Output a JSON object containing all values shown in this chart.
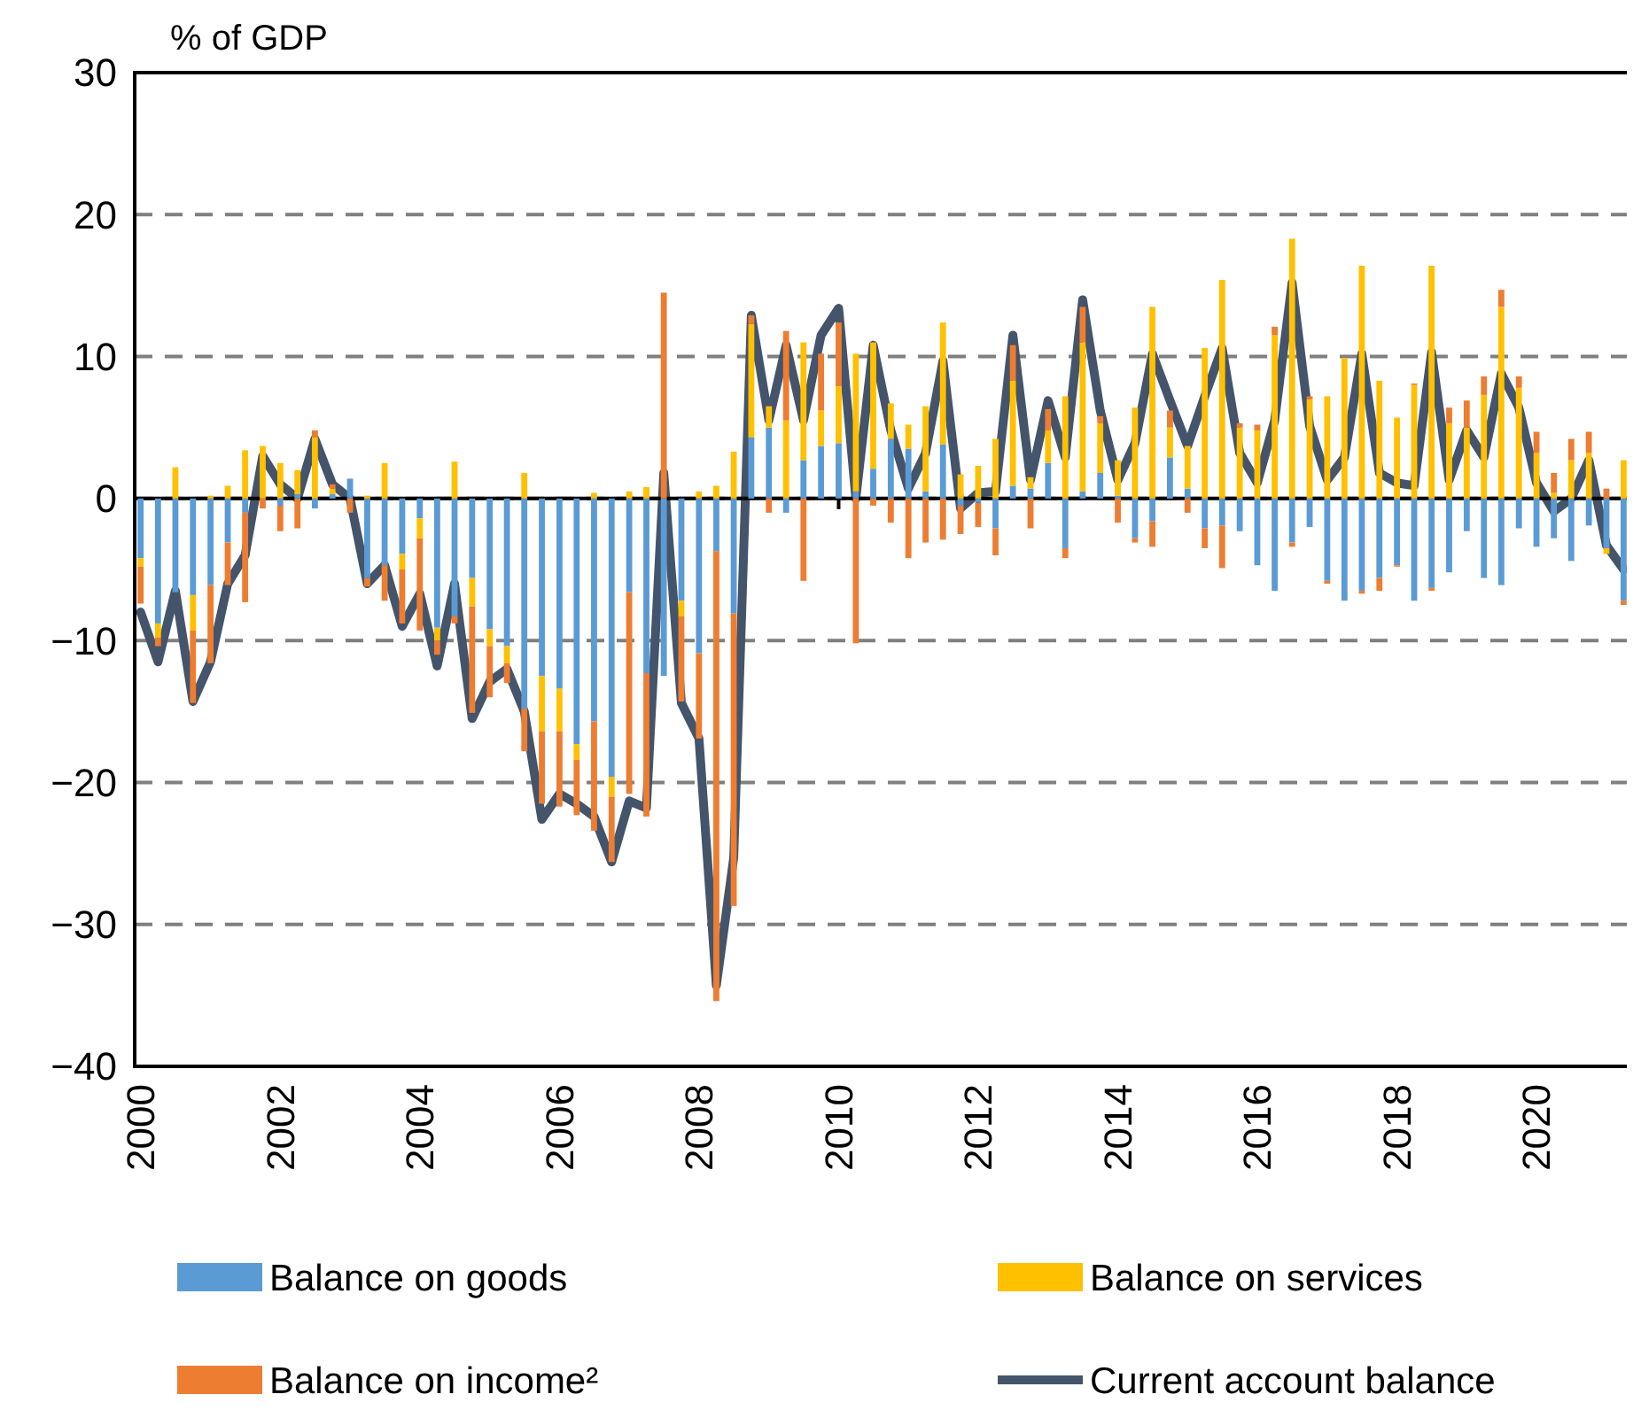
{
  "chart_data": {
    "type": "bar",
    "stacked": true,
    "ylabel": "% of GDP",
    "ylim": [
      -40,
      30
    ],
    "yticks": [
      -40,
      -30,
      -20,
      -10,
      0,
      10,
      20,
      30
    ],
    "grid": "y",
    "legend": "bottom",
    "xlim": [
      "1999-12",
      "2021-07"
    ],
    "xticks": [
      "2000",
      "2002",
      "2004",
      "2006",
      "2008",
      "2010",
      "2012",
      "2014",
      "2016",
      "2018",
      "2020"
    ],
    "x": [
      "2000-01",
      "2000-04",
      "2000-07",
      "2000-10",
      "2001-01",
      "2001-04",
      "2001-07",
      "2001-10",
      "2002-01",
      "2002-04",
      "2002-07",
      "2002-10",
      "2003-01",
      "2003-04",
      "2003-07",
      "2003-10",
      "2004-01",
      "2004-04",
      "2004-07",
      "2004-10",
      "2005-01",
      "2005-04",
      "2005-07",
      "2005-10",
      "2006-01",
      "2006-04",
      "2006-07",
      "2006-10",
      "2007-01",
      "2007-04",
      "2007-07",
      "2007-10",
      "2008-01",
      "2008-04",
      "2008-07",
      "2008-10",
      "2009-01",
      "2009-04",
      "2009-07",
      "2009-10",
      "2010-01",
      "2010-04",
      "2010-07",
      "2010-10",
      "2011-01",
      "2011-04",
      "2011-07",
      "2011-10",
      "2012-01",
      "2012-04",
      "2012-07",
      "2012-10",
      "2013-01",
      "2013-04",
      "2013-07",
      "2013-10",
      "2014-01",
      "2014-04",
      "2014-07",
      "2014-10",
      "2015-01",
      "2015-04",
      "2015-07",
      "2015-10",
      "2016-01",
      "2016-04",
      "2016-07",
      "2016-10",
      "2017-01",
      "2017-04",
      "2017-07",
      "2017-10",
      "2018-01",
      "2018-04",
      "2018-07",
      "2018-10",
      "2019-01",
      "2019-04",
      "2019-07",
      "2019-10",
      "2020-01",
      "2020-04",
      "2020-07",
      "2020-10",
      "2021-01",
      "2021-04"
    ],
    "series": [
      {
        "name": "Balance on goods",
        "color": "#5b9bd5",
        "values": [
          -4.2,
          -8.8,
          -6.6,
          -6.8,
          -6.1,
          -3.1,
          -1,
          0,
          -0.5,
          0.3,
          -0.7,
          0.3,
          1.4,
          -5.6,
          -4.7,
          -3.9,
          -1.4,
          -9.1,
          -8.3,
          -5.6,
          -9.2,
          -10.4,
          -14.8,
          -12.5,
          -13.4,
          -17.3,
          -15.7,
          -19.6,
          -6.6,
          -12.3,
          -12.5,
          -7.2,
          -10.9,
          -3.7,
          -8.1,
          4.3,
          5,
          -1,
          2.7,
          3.7,
          3.9,
          0.5,
          2.1,
          4.2,
          3.5,
          0.5,
          3.8,
          -0.5,
          -0.3,
          -2.1,
          0.9,
          0.7,
          2.5,
          -3.5,
          0.5,
          1.8,
          0.2,
          -2.8,
          -1.6,
          2.9,
          0.7,
          -2.1,
          -1.9,
          -2.3,
          -4.7,
          -6.5,
          -3.1,
          -2,
          -5.8,
          -7.2,
          -6.5,
          -5.6,
          -4.7,
          -7.2,
          -6.3,
          -5.2,
          -2.3,
          -5.6,
          -6.1,
          -2.1,
          -3.4,
          -2.8,
          -4.4,
          -1.9,
          -3.5,
          -7.2
        ]
      },
      {
        "name": "Balance on services",
        "color": "#ffc000",
        "values": [
          -0.6,
          -1,
          2.2,
          -2.5,
          0.2,
          0.9,
          3.4,
          3.7,
          2.5,
          1.7,
          4.3,
          0.4,
          0,
          0.2,
          2.5,
          -1.1,
          -1.4,
          -0.9,
          2.6,
          -2,
          -1.2,
          -1.2,
          1.8,
          -3.9,
          -3,
          -1.1,
          0.4,
          -1.4,
          0.5,
          0.8,
          0,
          -1.1,
          0.5,
          0.9,
          3.3,
          8,
          1.5,
          5.5,
          8.3,
          2.5,
          4,
          9.7,
          8.9,
          2.5,
          1.7,
          6,
          8.6,
          1.7,
          2.3,
          4.2,
          7.4,
          0.8,
          2.3,
          7.2,
          10.5,
          3.5,
          2.5,
          6.4,
          13.5,
          2.1,
          3,
          10.6,
          15.4,
          5,
          4.8,
          11.5,
          18.3,
          7,
          7.2,
          9.9,
          16.4,
          8.3,
          5.7,
          8,
          16.4,
          5.3,
          5,
          7.3,
          13.5,
          7.8,
          3.2,
          0.4,
          2.7,
          3.2,
          -0.4,
          2.7
        ]
      },
      {
        "name": "Balance on income²",
        "color": "#ed7d31",
        "values": [
          -2.6,
          -0.6,
          0,
          -5.1,
          -5.5,
          -3,
          -6.3,
          -0.7,
          -1.8,
          -2.1,
          0.5,
          0.3,
          -1,
          -0.6,
          -2.5,
          -3.8,
          -6.5,
          -1,
          -0.5,
          -7.5,
          -3.6,
          -1.4,
          -3,
          -5.1,
          -5.3,
          -3.9,
          -7.7,
          -4.6,
          -14.2,
          -10.1,
          14.5,
          -6,
          -6,
          -31.7,
          -20.6,
          0.6,
          -1,
          6.3,
          -5.8,
          4,
          4.5,
          -10.2,
          -0.5,
          -1.7,
          -4.2,
          -3.1,
          -2.9,
          -2,
          -1.7,
          -1.9,
          2.5,
          -2.1,
          1.5,
          -0.7,
          2.5,
          0.5,
          -1.7,
          -0.3,
          -1.8,
          1.2,
          -1,
          -1.4,
          -3,
          0.3,
          0.4,
          0.6,
          -0.3,
          0.2,
          -0.2,
          0,
          -0.2,
          -0.9,
          -0.1,
          0.1,
          -0.2,
          1.1,
          1.9,
          1.3,
          1.2,
          0.8,
          1.5,
          1.4,
          1.5,
          1.5,
          0.7,
          -0.3
        ]
      },
      {
        "name": "Current account balance",
        "type": "line",
        "color": "#44546a",
        "values": [
          -8,
          -11.5,
          -6.5,
          -14.3,
          -11.5,
          -6,
          -4,
          3,
          1,
          0,
          4.2,
          1,
          0,
          -6,
          -4.7,
          -9,
          -6.7,
          -11.8,
          -6,
          -15.5,
          -12.9,
          -12,
          -15,
          -22.6,
          -20.8,
          -21.5,
          -22.4,
          -25.6,
          -21.3,
          -21.8,
          1.8,
          -14.4,
          -16.9,
          -34.3,
          -25.3,
          12.9,
          5.5,
          10.8,
          5.5,
          11.5,
          13.4,
          0,
          10.8,
          4.8,
          0.7,
          3.2,
          9.7,
          -0.7,
          0.4,
          0.5,
          11.5,
          1.3,
          6.9,
          2.9,
          14,
          6.2,
          1.3,
          3.9,
          10.2,
          6.9,
          3.7,
          7.2,
          10.6,
          3.2,
          1.1,
          5.5,
          15.2,
          5.1,
          1.3,
          2.9,
          10.2,
          1.8,
          1.1,
          0.9,
          10.3,
          1.3,
          4.8,
          2.9,
          8.8,
          6.4,
          1.1,
          -0.9,
          0,
          2.7,
          -3.3,
          -5
        ]
      }
    ]
  }
}
